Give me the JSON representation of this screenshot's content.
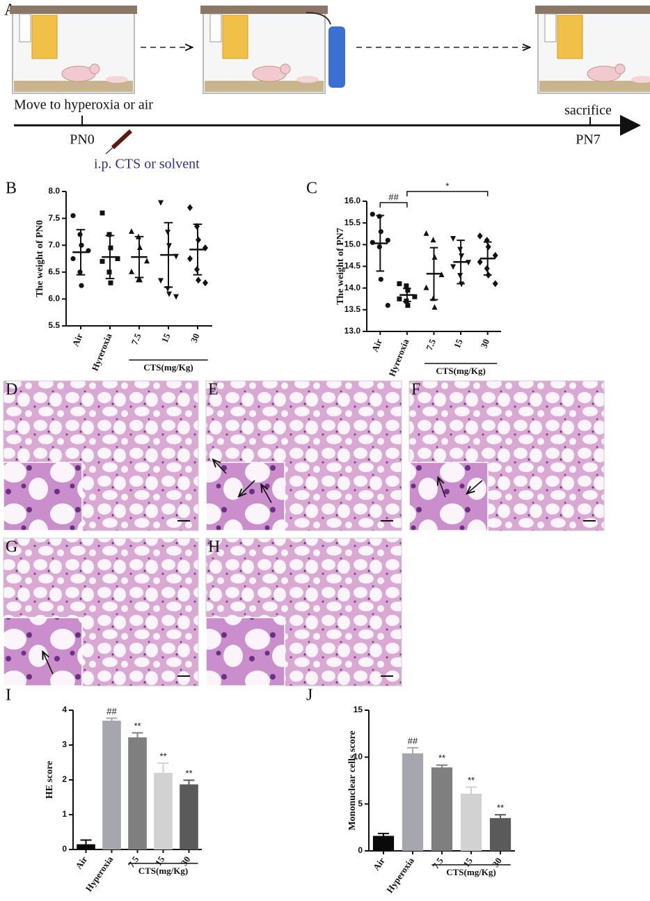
{
  "timeline": {
    "panel": "A",
    "start_text": "Move to hyperoxia or air",
    "start_day": "PN0",
    "injection": "i.p. CTS or solvent",
    "end_text": "sacrifice",
    "end_day": "PN7"
  },
  "histology": [
    {
      "panel": "D"
    },
    {
      "panel": "E"
    },
    {
      "panel": "F"
    },
    {
      "panel": "G"
    },
    {
      "panel": "H"
    }
  ],
  "chart_data": [
    {
      "type": "dot",
      "panel": "B",
      "y_label": "The weight of PN0",
      "categories": [
        "Air",
        "Hyreroxia",
        "7.5",
        "15",
        "30"
      ],
      "group": {
        "label": "CTS(mg/Kg)",
        "members": [
          "7.5",
          "15",
          "30"
        ]
      },
      "markers": [
        "circle",
        "square",
        "triangle-up",
        "triangle-down",
        "diamond"
      ],
      "color": "#111111",
      "points": [
        [
          7.55,
          7.2,
          7.0,
          6.9,
          6.75,
          6.5,
          6.25
        ],
        [
          7.6,
          7.2,
          6.95,
          6.75,
          6.7,
          6.5,
          6.3
        ],
        [
          7.25,
          7.15,
          6.95,
          6.7,
          6.5,
          6.35,
          6.35
        ],
        [
          7.8,
          7.25,
          7.0,
          6.8,
          6.35,
          6.2,
          6.1,
          6.05
        ],
        [
          7.7,
          7.35,
          7.1,
          6.95,
          6.75,
          6.55,
          6.35,
          6.3
        ]
      ],
      "values": [
        6.87,
        6.78,
        6.78,
        6.82,
        6.92
      ],
      "errors": [
        0.42,
        0.4,
        0.38,
        0.6,
        0.47
      ],
      "ylim": [
        5.5,
        8.0
      ],
      "yticks": [
        5.5,
        {
          "value": 6,
          "label": "6.0"
        },
        6.5,
        {
          "value": 7,
          "label": "7.0"
        },
        7.5,
        {
          "value": 8,
          "label": "8.0"
        }
      ]
    },
    {
      "type": "dot",
      "panel": "C",
      "y_label": "The weight of PN7",
      "categories": [
        "Air",
        "Hyreroxia",
        "7.5",
        "15",
        "30"
      ],
      "group": {
        "label": "CTS(mg/Kg)",
        "members": [
          "7.5",
          "15",
          "30"
        ]
      },
      "markers": [
        "circle",
        "square",
        "triangle-up",
        "triangle-down",
        "diamond"
      ],
      "color": "#111111",
      "points": [
        [
          15.7,
          15.65,
          15.3,
          15.1,
          15.05,
          14.95,
          14.2,
          13.6
        ],
        [
          14.1,
          14.05,
          13.95,
          13.8,
          13.75,
          13.7,
          13.6
        ],
        [
          15.25,
          15.1,
          14.7,
          14.3,
          14.0,
          13.75,
          13.55
        ],
        [
          15.15,
          14.9,
          14.75,
          14.6,
          14.5,
          14.3,
          14.1
        ],
        [
          15.2,
          15.1,
          14.95,
          14.75,
          14.6,
          14.45,
          14.3,
          14.1
        ]
      ],
      "values": [
        15.03,
        13.84,
        14.33,
        14.6,
        14.68
      ],
      "errors": [
        0.64,
        0.15,
        0.6,
        0.5,
        0.38
      ],
      "brackets": [
        {
          "text": "##",
          "between": [
            "Air",
            "Hyreroxia"
          ]
        },
        {
          "text": "*",
          "between": [
            "Hyreroxia",
            "30"
          ]
        }
      ],
      "ylim": [
        13.0,
        16.0
      ],
      "yticks": [
        {
          "value": 13,
          "label": "13.0"
        },
        13.5,
        {
          "value": 14,
          "label": "14.0"
        },
        14.5,
        {
          "value": 15,
          "label": "15.0"
        },
        15.5,
        {
          "value": 16,
          "label": "16.0"
        }
      ]
    },
    {
      "type": "bar",
      "panel": "I",
      "y_label": "HE score",
      "categories": [
        "Air",
        "Hyperoxia",
        "7.5",
        "15",
        "30"
      ],
      "group": {
        "label": "CTS(mg/Kg)",
        "members": [
          "7.5",
          "15",
          "30"
        ]
      },
      "colors": [
        "#0a0a0a",
        "#a6a6ae",
        "#7f7f7f",
        "#d2d2d2",
        "#5a5a5a"
      ],
      "values": [
        0.15,
        3.7,
        3.22,
        2.2,
        1.87
      ],
      "errors": [
        0.12,
        0.07,
        0.13,
        0.28,
        0.12
      ],
      "annotations": [
        null,
        "##",
        "**",
        "**",
        "**"
      ],
      "ylim": [
        0,
        4
      ],
      "yticks": [
        0,
        1,
        2,
        3,
        4
      ]
    },
    {
      "type": "bar",
      "panel": "J",
      "y_label": "Mononuclear cells score",
      "categories": [
        "Air",
        "Hyperoxia",
        "7.5",
        "15",
        "30"
      ],
      "group": {
        "label": "CTS(mg/Kg)",
        "members": [
          "7.5",
          "15",
          "30"
        ]
      },
      "colors": [
        "#0a0a0a",
        "#a6a6ae",
        "#7f7f7f",
        "#d2d2d2",
        "#5a5a5a"
      ],
      "values": [
        1.6,
        10.4,
        8.9,
        6.1,
        3.5
      ],
      "errors": [
        0.25,
        0.6,
        0.25,
        0.7,
        0.35
      ],
      "annotations": [
        null,
        "##",
        "**",
        "**",
        "**"
      ],
      "ylim": [
        0,
        15
      ],
      "yticks": [
        0,
        5,
        10,
        15
      ]
    }
  ]
}
